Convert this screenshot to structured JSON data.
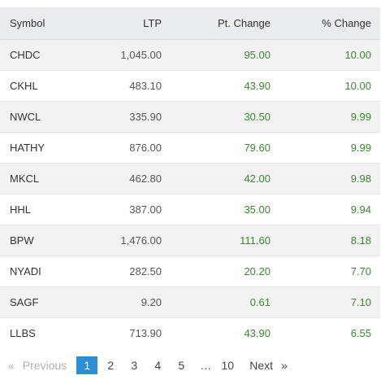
{
  "table": {
    "headers": {
      "symbol": "Symbol",
      "ltp": "LTP",
      "pt_change": "Pt. Change",
      "pct_change": "% Change"
    },
    "rows": [
      {
        "symbol": "CHDC",
        "ltp": "1,045.00",
        "pt_change": "95.00",
        "pct_change": "10.00"
      },
      {
        "symbol": "CKHL",
        "ltp": "483.10",
        "pt_change": "43.90",
        "pct_change": "10.00"
      },
      {
        "symbol": "NWCL",
        "ltp": "335.90",
        "pt_change": "30.50",
        "pct_change": "9.99"
      },
      {
        "symbol": "HATHY",
        "ltp": "876.00",
        "pt_change": "79.60",
        "pct_change": "9.99"
      },
      {
        "symbol": "MKCL",
        "ltp": "462.80",
        "pt_change": "42.00",
        "pct_change": "9.98"
      },
      {
        "symbol": "HHL",
        "ltp": "387.00",
        "pt_change": "35.00",
        "pct_change": "9.94"
      },
      {
        "symbol": "BPW",
        "ltp": "1,476.00",
        "pt_change": "111.60",
        "pct_change": "8.18"
      },
      {
        "symbol": "NYADI",
        "ltp": "282.50",
        "pt_change": "20.20",
        "pct_change": "7.70"
      },
      {
        "symbol": "SAGF",
        "ltp": "9.20",
        "pt_change": "0.61",
        "pct_change": "7.10"
      },
      {
        "symbol": "LLBS",
        "ltp": "713.90",
        "pt_change": "43.90",
        "pct_change": "6.55"
      }
    ]
  },
  "pagination": {
    "prev_arrow": "«",
    "prev_label": "Previous",
    "pages": [
      "1",
      "2",
      "3",
      "4",
      "5"
    ],
    "active_page": "1",
    "ellipsis": "…",
    "last_page": "10",
    "next_label": "Next",
    "next_arrow": "»"
  },
  "colors": {
    "positive": "#3a8a2e",
    "active_page_bg": "#2b8fd6",
    "header_bg": "#e9ecef",
    "stripe_bg": "#f2f2f2"
  }
}
